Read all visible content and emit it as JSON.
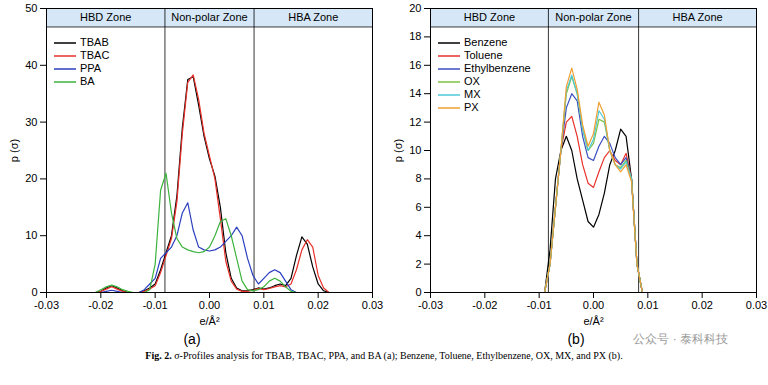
{
  "chart_data": [
    {
      "type": "line",
      "panel_label": "(a)",
      "x_label": "e/Å²",
      "y_label": "p (σ)",
      "xlim": [
        -0.03,
        0.03
      ],
      "xticks": [
        -0.03,
        -0.02,
        -0.01,
        {
          "value": 0,
          "label": "0.00"
        },
        0.01,
        0.02,
        0.03
      ],
      "ylim": [
        0,
        50
      ],
      "yticks": [
        0,
        10,
        20,
        30,
        40,
        50
      ],
      "legend": "upper left",
      "zones": [
        "HBD Zone",
        "Non-polar Zone",
        "HBA Zone"
      ],
      "zone_boundaries": [
        -0.0082,
        0.0082
      ],
      "x": [
        -0.03,
        -0.022,
        -0.021,
        -0.02,
        -0.019,
        -0.018,
        -0.017,
        -0.016,
        -0.015,
        -0.014,
        -0.013,
        -0.012,
        -0.011,
        -0.01,
        -0.009,
        -0.008,
        -0.007,
        -0.006,
        -0.005,
        -0.004,
        -0.003,
        -0.002,
        -0.001,
        0,
        0.001,
        0.002,
        0.003,
        0.004,
        0.005,
        0.006,
        0.007,
        0.008,
        0.009,
        0.01,
        0.011,
        0.012,
        0.013,
        0.014,
        0.015,
        0.016,
        0.017,
        0.018,
        0.019,
        0.02,
        0.021,
        0.022,
        0.03
      ],
      "series": [
        {
          "name": "TBAB",
          "color": "#000000",
          "values": [
            0,
            0,
            0,
            0.2,
            0.8,
            1.2,
            0.8,
            0.3,
            0,
            0,
            0,
            0.3,
            0.8,
            1.5,
            4,
            7,
            10,
            17,
            29,
            37.5,
            38,
            33,
            27.5,
            23.5,
            20.5,
            15,
            7,
            2.5,
            0.8,
            0.3,
            0.3,
            0.5,
            0.8,
            0.6,
            0.8,
            1.2,
            1.5,
            1.2,
            2.5,
            6.5,
            9.8,
            8.5,
            4.5,
            1.5,
            0.3,
            0,
            0
          ]
        },
        {
          "name": "TBAC",
          "color": "#e8302a",
          "values": [
            0,
            0,
            0,
            0.2,
            0.6,
            1,
            0.6,
            0.2,
            0,
            0,
            0,
            0.2,
            0.6,
            1.2,
            3.5,
            6.5,
            9.5,
            16,
            28,
            37,
            38.3,
            34,
            28,
            24,
            20,
            13,
            5.5,
            2,
            0.6,
            0.2,
            0.2,
            0.4,
            0.7,
            0.5,
            0.7,
            1,
            1.2,
            1,
            1.5,
            4,
            7.5,
            9.3,
            8,
            3,
            0.8,
            0,
            0
          ]
        },
        {
          "name": "PPA",
          "color": "#2b3fbf",
          "values": [
            0,
            0,
            0,
            0,
            0.2,
            0.4,
            0.2,
            0,
            0,
            0,
            0,
            0.5,
            1.5,
            2.5,
            6,
            7,
            8,
            10,
            14,
            15.8,
            11,
            8,
            7.5,
            7.3,
            7.5,
            8,
            9,
            10,
            11.5,
            10,
            6,
            3,
            1.5,
            2.5,
            3.5,
            4,
            3.5,
            2,
            0.5,
            0,
            0,
            0,
            0,
            0,
            0,
            0,
            0
          ]
        },
        {
          "name": "BA",
          "color": "#3cb33c",
          "values": [
            0,
            0,
            0,
            0.5,
            1,
            1.3,
            1,
            0.5,
            0.2,
            0,
            0,
            0,
            0.5,
            5,
            18,
            21,
            14,
            9.5,
            8,
            7.5,
            7.2,
            7,
            7.2,
            8,
            10,
            12.5,
            13,
            10,
            6,
            2,
            0.5,
            0.3,
            0.5,
            1,
            2,
            2.5,
            2,
            1,
            0.2,
            0,
            0,
            0,
            0,
            0,
            0,
            0,
            0
          ]
        }
      ]
    },
    {
      "type": "line",
      "panel_label": "(b)",
      "x_label": "e/Å²",
      "y_label": "p (σ)",
      "xlim": [
        -0.03,
        0.03
      ],
      "xticks": [
        -0.03,
        -0.02,
        -0.01,
        {
          "value": 0,
          "label": "0.00"
        },
        0.01,
        0.02,
        0.03
      ],
      "ylim": [
        0,
        20
      ],
      "yticks": [
        0,
        2,
        4,
        6,
        8,
        10,
        12,
        14,
        16,
        18,
        20
      ],
      "legend": "upper left",
      "zones": [
        "HBD Zone",
        "Non-polar Zone",
        "HBA Zone"
      ],
      "zone_boundaries": [
        -0.0083,
        0.0083
      ],
      "x": [
        -0.03,
        -0.01,
        -0.009,
        -0.008,
        -0.007,
        -0.006,
        -0.005,
        -0.004,
        -0.003,
        -0.002,
        -0.001,
        0,
        0.001,
        0.002,
        0.003,
        0.004,
        0.005,
        0.006,
        0.007,
        0.008,
        0.009,
        0.01,
        0.03
      ],
      "series": [
        {
          "name": "Benzene",
          "color": "#000000",
          "values": [
            0,
            0,
            0,
            3,
            8,
            10,
            11,
            10,
            8,
            6.5,
            5,
            4.6,
            5.5,
            7,
            9,
            10,
            11.5,
            11,
            8,
            2,
            0,
            0,
            0
          ]
        },
        {
          "name": "Toluene",
          "color": "#e8302a",
          "values": [
            0,
            0,
            0,
            2,
            6,
            10,
            12,
            12.4,
            11,
            9,
            7.7,
            7.4,
            8.5,
            9.5,
            10,
            9.3,
            9,
            9.8,
            8,
            2,
            0,
            0,
            0
          ]
        },
        {
          "name": "Ethylbenzene",
          "color": "#3b4fc0",
          "values": [
            0,
            0,
            0,
            2,
            6,
            10,
            13,
            14,
            13.5,
            11,
            9.5,
            9.3,
            10.3,
            11,
            10.5,
            9.5,
            9,
            9.5,
            8,
            2,
            0,
            0,
            0
          ]
        },
        {
          "name": "OX",
          "color": "#7cc242",
          "values": [
            0,
            0,
            0,
            2,
            6,
            10,
            14,
            15.2,
            14,
            11.5,
            10,
            10.5,
            12.2,
            12,
            10,
            9,
            8.8,
            9.3,
            8,
            2,
            0,
            0,
            0
          ]
        },
        {
          "name": "MX",
          "color": "#4ec9d8",
          "values": [
            0,
            0,
            0,
            2,
            6,
            10,
            14.2,
            15.3,
            14,
            11.5,
            10,
            10.8,
            12.8,
            12.2,
            10,
            9,
            8.7,
            9.2,
            8,
            2,
            0,
            0,
            0
          ]
        },
        {
          "name": "PX",
          "color": "#f0a030",
          "values": [
            0,
            0,
            0,
            2,
            6,
            10,
            14.5,
            15.8,
            14.3,
            11.8,
            10.3,
            11.2,
            13.4,
            12.5,
            10,
            9,
            8.5,
            9,
            7.8,
            2,
            0,
            0,
            0
          ]
        }
      ]
    }
  ],
  "caption_label": "Fig. 2.",
  "caption": "σ-Profiles analysis for TBAB, TBAC, PPA, and BA (a); Benzene, Toluene, Ethylbenzene, OX, MX, and PX (b).",
  "watermark": "公众号 · 泰科科技"
}
